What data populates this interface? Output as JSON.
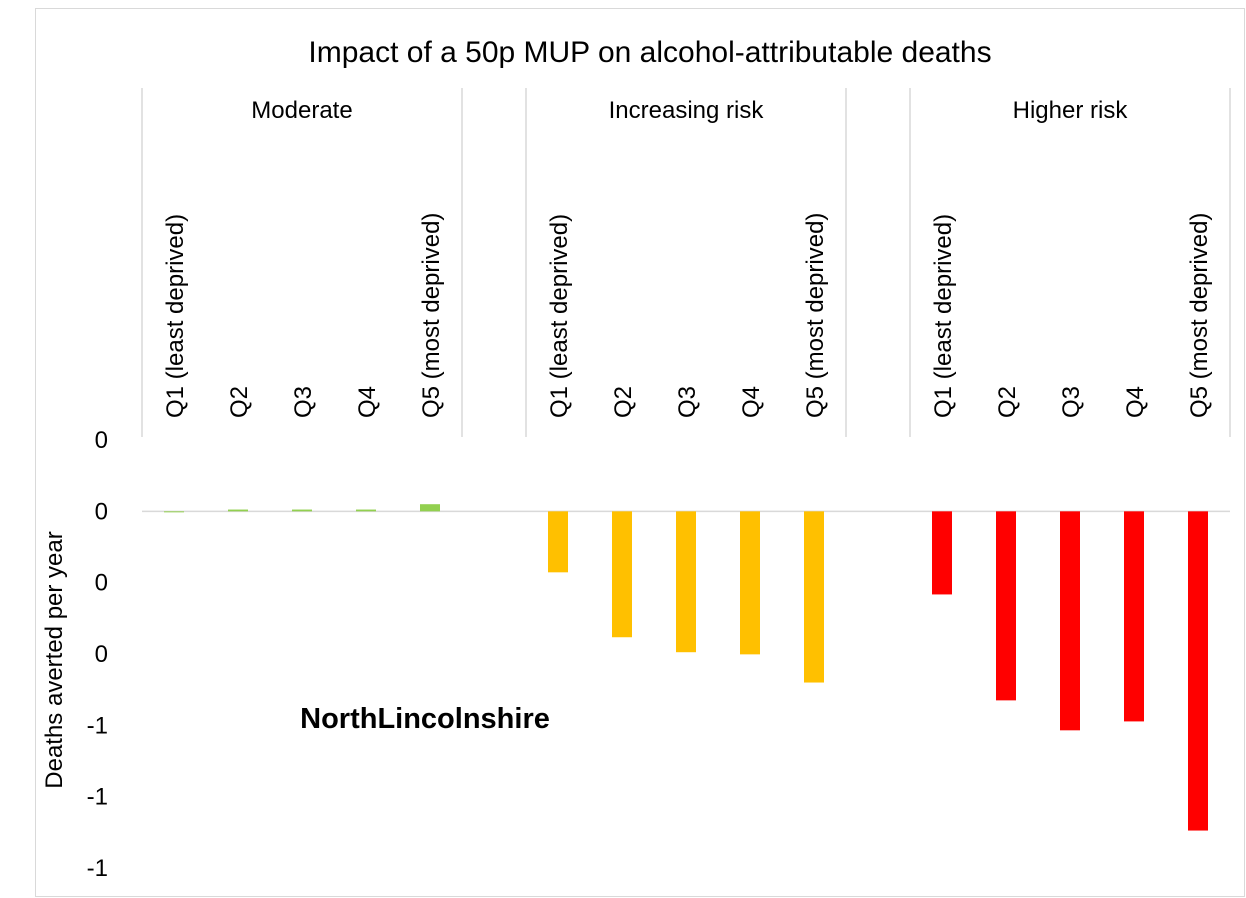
{
  "chart_data": {
    "type": "bar",
    "title": "Impact of a 50p MUP on alcohol-attributable  deaths",
    "y_label": "Deaths averted per year",
    "annotation": "NorthLincolnshire",
    "groups": [
      {
        "name": "Moderate",
        "color": "#92d050",
        "categories": [
          "Q1  (least deprived)",
          "Q2",
          "Q3",
          "Q4",
          "Q5 (most deprived)"
        ],
        "values": [
          -0.002,
          0.005,
          0.005,
          0.005,
          0.02
        ]
      },
      {
        "name": "Increasing risk",
        "color": "#ffc000",
        "categories": [
          "Q1  (least deprived)",
          "Q2",
          "Q3",
          "Q4",
          "Q5 (most deprived)"
        ],
        "values": [
          -0.171,
          -0.353,
          -0.395,
          -0.401,
          -0.48
        ]
      },
      {
        "name": "Higher risk",
        "color": "#ff0000",
        "categories": [
          "Q1  (least deprived)",
          "Q2",
          "Q3",
          "Q4",
          "Q5 (most deprived)"
        ],
        "values": [
          -0.233,
          -0.53,
          -0.614,
          -0.589,
          -0.895
        ]
      }
    ],
    "ylim": [
      -1,
      0.2
    ],
    "yticks": [
      {
        "value": 0.2,
        "label": "0"
      },
      0,
      {
        "value": -0.2,
        "label": "0"
      },
      {
        "value": -0.4,
        "label": "0"
      },
      {
        "value": -0.6,
        "label": "-1"
      },
      {
        "value": -0.8,
        "label": "-1"
      },
      -1
    ],
    "grid": false
  }
}
